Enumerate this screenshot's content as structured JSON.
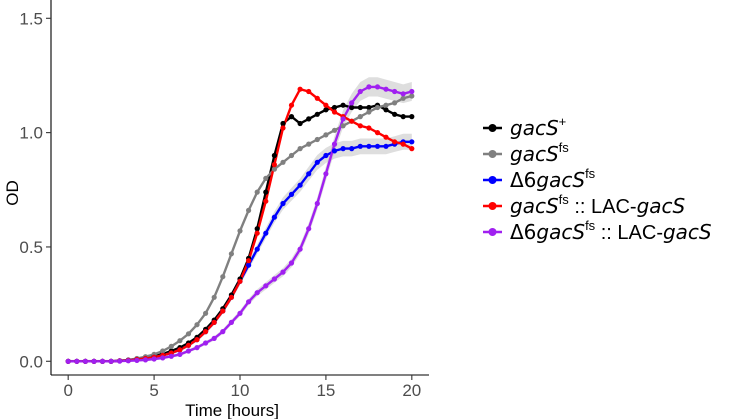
{
  "chart_data": {
    "type": "line",
    "title": "",
    "xlabel": "Time [hours]",
    "ylabel": "OD",
    "xlim": [
      -1,
      21
    ],
    "ylim": [
      -0.06,
      1.58
    ],
    "xticks": [
      0,
      5,
      10,
      15,
      20
    ],
    "yticks": [
      0.0,
      0.5,
      1.0,
      1.5
    ],
    "xtick_labels": [
      "0",
      "5",
      "10",
      "15",
      "20"
    ],
    "ytick_labels": [
      "0.0",
      "0.5",
      "1.0",
      "1.5"
    ],
    "grid": false,
    "legend_position": "right",
    "x": [
      0,
      0.5,
      1,
      1.5,
      2,
      2.5,
      3,
      3.5,
      4,
      4.5,
      5,
      5.5,
      6,
      6.5,
      7,
      7.5,
      8,
      8.5,
      9,
      9.5,
      10,
      10.5,
      11,
      11.5,
      12,
      12.5,
      13,
      13.5,
      14,
      14.5,
      15,
      15.5,
      16,
      16.5,
      17,
      17.5,
      18,
      18.5,
      19,
      19.5,
      20
    ],
    "series": [
      {
        "name": "gacS+",
        "color": "#000000",
        "values": [
          0,
          0,
          0,
          0,
          0,
          0,
          0.002,
          0.005,
          0.01,
          0.015,
          0.022,
          0.032,
          0.045,
          0.06,
          0.08,
          0.105,
          0.14,
          0.18,
          0.23,
          0.29,
          0.36,
          0.45,
          0.58,
          0.74,
          0.9,
          1.04,
          1.07,
          1.04,
          1.06,
          1.08,
          1.1,
          1.11,
          1.12,
          1.11,
          1.11,
          1.11,
          1.12,
          1.1,
          1.08,
          1.07,
          1.07
        ],
        "band": false
      },
      {
        "name": "gacSfs",
        "color": "#808080",
        "values": [
          0,
          0,
          0,
          0,
          0,
          0,
          0.002,
          0.006,
          0.012,
          0.02,
          0.03,
          0.045,
          0.065,
          0.09,
          0.12,
          0.16,
          0.21,
          0.28,
          0.37,
          0.47,
          0.57,
          0.66,
          0.74,
          0.8,
          0.84,
          0.87,
          0.9,
          0.93,
          0.95,
          0.97,
          0.99,
          1.01,
          1.03,
          1.05,
          1.07,
          1.09,
          1.11,
          1.12,
          1.13,
          1.15,
          1.16
        ],
        "band": false
      },
      {
        "name": "Δ6gacSfs",
        "color": "#0000ff",
        "values": [
          0,
          0,
          0,
          0,
          0,
          0,
          0.002,
          0.004,
          0.008,
          0.012,
          0.018,
          0.026,
          0.036,
          0.05,
          0.07,
          0.095,
          0.13,
          0.17,
          0.22,
          0.28,
          0.35,
          0.42,
          0.49,
          0.56,
          0.63,
          0.69,
          0.73,
          0.77,
          0.82,
          0.87,
          0.9,
          0.92,
          0.93,
          0.93,
          0.94,
          0.94,
          0.94,
          0.94,
          0.95,
          0.96,
          0.96
        ],
        "band": true
      },
      {
        "name": "gacSfs :: LAC-gacS",
        "color": "#ff0000",
        "values": [
          0,
          0,
          0,
          0,
          0,
          0,
          0.002,
          0.004,
          0.008,
          0.012,
          0.018,
          0.026,
          0.036,
          0.05,
          0.07,
          0.095,
          0.13,
          0.17,
          0.22,
          0.28,
          0.35,
          0.44,
          0.56,
          0.7,
          0.86,
          1.02,
          1.12,
          1.19,
          1.18,
          1.15,
          1.12,
          1.09,
          1.07,
          1.05,
          1.03,
          1.02,
          1.0,
          0.98,
          0.96,
          0.95,
          0.93
        ],
        "band": false
      },
      {
        "name": "Δ6gacSfs :: LAC-gacS",
        "color": "#a020f0",
        "values": [
          0,
          0,
          0,
          0,
          0,
          0,
          0.001,
          0.002,
          0.004,
          0.006,
          0.01,
          0.015,
          0.022,
          0.03,
          0.045,
          0.06,
          0.08,
          0.1,
          0.13,
          0.17,
          0.21,
          0.26,
          0.3,
          0.33,
          0.36,
          0.39,
          0.43,
          0.49,
          0.58,
          0.69,
          0.82,
          0.95,
          1.06,
          1.13,
          1.18,
          1.2,
          1.2,
          1.19,
          1.18,
          1.17,
          1.18
        ],
        "band": true
      }
    ]
  },
  "legend": [
    {
      "base": "gacS",
      "sup": "+",
      "prefix": "",
      "suffix": ""
    },
    {
      "base": "gacS",
      "sup": "fs",
      "prefix": "",
      "suffix": ""
    },
    {
      "base": "gacS",
      "sup": "fs",
      "prefix": "Δ6",
      "suffix": ""
    },
    {
      "base": "gacS",
      "sup": "fs",
      "prefix": "",
      "suffix": " :: LAC-",
      "suffix_italic": "gacS"
    },
    {
      "base": "gacS",
      "sup": "fs",
      "prefix": "Δ6",
      "suffix": " :: LAC-",
      "suffix_italic": "gacS"
    }
  ]
}
